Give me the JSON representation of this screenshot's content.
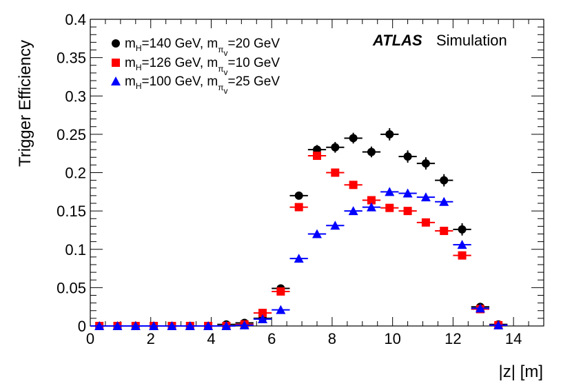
{
  "chart_data": {
    "type": "scatter",
    "title": "",
    "xlabel": "|z| [m]",
    "ylabel": "Trigger Efficiency",
    "xlim": [
      0,
      15
    ],
    "ylim": [
      0,
      0.4
    ],
    "xticks": [
      0,
      2,
      4,
      6,
      8,
      10,
      12,
      14
    ],
    "xtick_labels": [
      "0",
      "2",
      "4",
      "6",
      "8",
      "10",
      "12",
      "14"
    ],
    "yticks": [
      0,
      0.05,
      0.1,
      0.15,
      0.2,
      0.25,
      0.3,
      0.35,
      0.4
    ],
    "ytick_labels": [
      "0",
      "0.05",
      "0.1",
      "0.15",
      "0.2",
      "0.25",
      "0.3",
      "0.35",
      "0.4"
    ],
    "x": [
      0.3,
      0.9,
      1.5,
      2.1,
      2.7,
      3.3,
      3.9,
      4.5,
      5.1,
      5.7,
      6.3,
      6.9,
      7.5,
      8.1,
      8.7,
      9.3,
      9.9,
      10.5,
      11.1,
      11.7,
      12.3,
      12.9,
      13.5
    ],
    "bin_half_width": 0.3,
    "series": [
      {
        "name_main": "m",
        "name_parts": [
          "H",
          "=140 GeV, m",
          "π",
          "v",
          "=20 GeV"
        ],
        "marker": "circle",
        "color": "#000000",
        "values": [
          0,
          0,
          0,
          0,
          0,
          0,
          0,
          0.002,
          0.004,
          0.01,
          0.049,
          0.17,
          0.23,
          0.233,
          0.245,
          0.227,
          0.25,
          0.221,
          0.212,
          0.19,
          0.126,
          0.025,
          0.002
        ],
        "errors": [
          0.001,
          0.001,
          0.001,
          0.001,
          0.001,
          0.001,
          0.001,
          0.002,
          0.002,
          0.003,
          0.004,
          0.005,
          0.006,
          0.007,
          0.007,
          0.007,
          0.008,
          0.008,
          0.008,
          0.008,
          0.008,
          0.004,
          0.002
        ]
      },
      {
        "name_main": "m",
        "name_parts": [
          "H",
          "=126 GeV, m",
          "π",
          "v",
          "=10 GeV"
        ],
        "marker": "square",
        "color": "#ff0000",
        "values": [
          0,
          0,
          0,
          0,
          0,
          0,
          0,
          0,
          0.002,
          0.017,
          0.045,
          0.155,
          0.222,
          0.2,
          0.184,
          0.164,
          0.154,
          0.15,
          0.135,
          0.124,
          0.092,
          0.022,
          0.001
        ],
        "errors": [
          0.001,
          0.001,
          0.001,
          0.001,
          0.001,
          0.001,
          0.001,
          0.001,
          0.002,
          0.003,
          0.003,
          0.004,
          0.005,
          0.005,
          0.005,
          0.005,
          0.005,
          0.005,
          0.005,
          0.005,
          0.005,
          0.003,
          0.001
        ]
      },
      {
        "name_main": "m",
        "name_parts": [
          "H",
          "=100 GeV, m",
          "π",
          "v",
          "=25 GeV"
        ],
        "marker": "triangle",
        "color": "#0000ff",
        "values": [
          0,
          0,
          0,
          0,
          0,
          0,
          0,
          0,
          0.001,
          0.009,
          0.021,
          0.088,
          0.12,
          0.131,
          0.15,
          0.155,
          0.175,
          0.173,
          0.168,
          0.162,
          0.106,
          0.023,
          0.001
        ],
        "errors": [
          0.001,
          0.001,
          0.001,
          0.001,
          0.001,
          0.001,
          0.001,
          0.001,
          0.001,
          0.002,
          0.002,
          0.003,
          0.003,
          0.004,
          0.004,
          0.004,
          0.005,
          0.005,
          0.005,
          0.005,
          0.005,
          0.003,
          0.001
        ]
      }
    ],
    "legend_position": "top-left",
    "annotation": {
      "brand": "ATLAS",
      "label": "Simulation",
      "position": "top-right"
    }
  }
}
